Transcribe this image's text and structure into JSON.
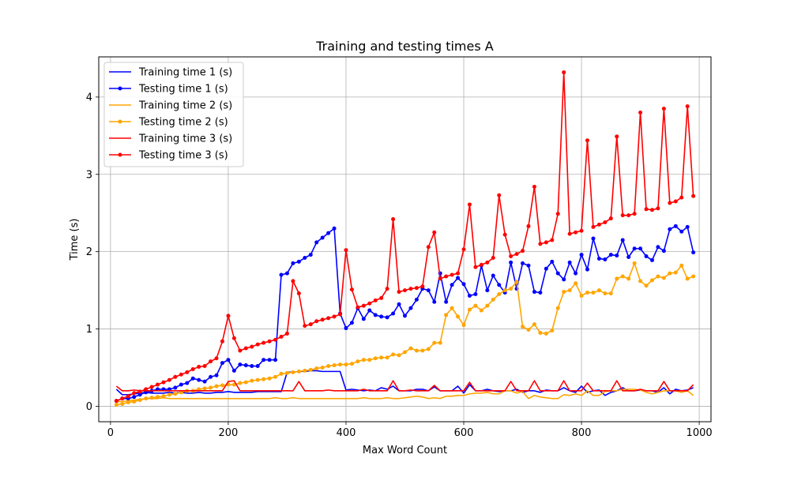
{
  "chart_data": {
    "type": "line",
    "title": "Training and testing times A",
    "xlabel": "Max Word Count",
    "ylabel": "Time (s)",
    "xlim": [
      -20,
      1020
    ],
    "ylim": [
      -0.2,
      4.52
    ],
    "xticks": [
      0,
      200,
      400,
      600,
      800,
      1000
    ],
    "yticks": [
      0,
      1,
      2,
      3,
      4
    ],
    "grid": true,
    "legend_position": "top-left",
    "x": [
      10,
      20,
      30,
      40,
      50,
      60,
      70,
      80,
      90,
      100,
      110,
      120,
      130,
      140,
      150,
      160,
      170,
      180,
      190,
      200,
      210,
      220,
      230,
      240,
      250,
      260,
      270,
      280,
      290,
      300,
      310,
      320,
      330,
      340,
      350,
      360,
      370,
      380,
      390,
      400,
      410,
      420,
      430,
      440,
      450,
      460,
      470,
      480,
      490,
      500,
      510,
      520,
      530,
      540,
      550,
      560,
      570,
      580,
      590,
      600,
      610,
      620,
      630,
      640,
      650,
      660,
      670,
      680,
      690,
      700,
      710,
      720,
      730,
      740,
      750,
      760,
      770,
      780,
      790,
      800,
      810,
      820,
      830,
      840,
      850,
      860,
      870,
      880,
      890,
      900,
      910,
      920,
      930,
      940,
      950,
      960,
      970,
      980,
      990
    ],
    "series": [
      {
        "name": "Training time 1 (s)",
        "color": "#0000ff",
        "markers": false,
        "values": [
          0.22,
          0.15,
          0.15,
          0.16,
          0.17,
          0.18,
          0.17,
          0.17,
          0.17,
          0.18,
          0.17,
          0.18,
          0.17,
          0.17,
          0.18,
          0.17,
          0.17,
          0.18,
          0.18,
          0.19,
          0.18,
          0.18,
          0.18,
          0.18,
          0.19,
          0.19,
          0.19,
          0.19,
          0.19,
          0.44,
          0.44,
          0.45,
          0.45,
          0.46,
          0.46,
          0.45,
          0.45,
          0.45,
          0.45,
          0.21,
          0.22,
          0.21,
          0.2,
          0.21,
          0.2,
          0.24,
          0.22,
          0.26,
          0.2,
          0.2,
          0.2,
          0.22,
          0.22,
          0.2,
          0.25,
          0.2,
          0.2,
          0.2,
          0.26,
          0.17,
          0.28,
          0.2,
          0.2,
          0.22,
          0.2,
          0.19,
          0.2,
          0.2,
          0.22,
          0.18,
          0.2,
          0.2,
          0.18,
          0.21,
          0.2,
          0.2,
          0.24,
          0.2,
          0.18,
          0.26,
          0.18,
          0.2,
          0.21,
          0.14,
          0.18,
          0.2,
          0.24,
          0.2,
          0.2,
          0.21,
          0.2,
          0.2,
          0.18,
          0.24,
          0.16,
          0.22,
          0.2,
          0.21,
          0.24
        ]
      },
      {
        "name": "Testing time 1 (s)",
        "color": "#0000ff",
        "markers": true,
        "values": [
          0.07,
          0.1,
          0.1,
          0.12,
          0.15,
          0.18,
          0.2,
          0.22,
          0.22,
          0.22,
          0.24,
          0.28,
          0.3,
          0.36,
          0.34,
          0.32,
          0.38,
          0.4,
          0.56,
          0.6,
          0.46,
          0.54,
          0.53,
          0.52,
          0.52,
          0.6,
          0.6,
          0.6,
          1.7,
          1.72,
          1.85,
          1.87,
          1.92,
          1.96,
          2.12,
          2.18,
          2.24,
          2.3,
          1.2,
          1.01,
          1.08,
          1.27,
          1.13,
          1.24,
          1.18,
          1.16,
          1.15,
          1.2,
          1.32,
          1.17,
          1.27,
          1.38,
          1.52,
          1.5,
          1.35,
          1.72,
          1.35,
          1.57,
          1.66,
          1.58,
          1.43,
          1.45,
          1.82,
          1.5,
          1.69,
          1.57,
          1.47,
          1.86,
          1.52,
          1.85,
          1.82,
          1.48,
          1.47,
          1.78,
          1.87,
          1.72,
          1.64,
          1.86,
          1.72,
          1.96,
          1.77,
          2.17,
          1.91,
          1.9,
          1.96,
          1.95,
          2.15,
          1.93,
          2.04,
          2.04,
          1.94,
          1.89,
          2.06,
          2.01,
          2.29,
          2.33,
          2.26,
          2.32,
          1.99
        ]
      },
      {
        "name": "Training time 2 (s)",
        "color": "#ffa500",
        "markers": false,
        "values": [
          0.06,
          0.06,
          0.07,
          0.08,
          0.09,
          0.1,
          0.1,
          0.1,
          0.11,
          0.1,
          0.1,
          0.1,
          0.1,
          0.1,
          0.1,
          0.1,
          0.1,
          0.1,
          0.1,
          0.1,
          0.1,
          0.1,
          0.1,
          0.1,
          0.1,
          0.1,
          0.1,
          0.11,
          0.1,
          0.1,
          0.11,
          0.1,
          0.1,
          0.1,
          0.1,
          0.1,
          0.1,
          0.1,
          0.1,
          0.1,
          0.1,
          0.1,
          0.11,
          0.1,
          0.1,
          0.1,
          0.11,
          0.1,
          0.1,
          0.11,
          0.12,
          0.13,
          0.12,
          0.1,
          0.11,
          0.1,
          0.13,
          0.13,
          0.14,
          0.14,
          0.16,
          0.17,
          0.17,
          0.18,
          0.16,
          0.16,
          0.2,
          0.2,
          0.17,
          0.19,
          0.1,
          0.14,
          0.12,
          0.11,
          0.1,
          0.1,
          0.15,
          0.14,
          0.16,
          0.14,
          0.2,
          0.14,
          0.14,
          0.19,
          0.2,
          0.2,
          0.22,
          0.22,
          0.22,
          0.21,
          0.18,
          0.16,
          0.18,
          0.2,
          0.2,
          0.2,
          0.18,
          0.2,
          0.14
        ]
      },
      {
        "name": "Testing time 2 (s)",
        "color": "#ffa500",
        "markers": true,
        "values": [
          0.02,
          0.03,
          0.05,
          0.06,
          0.08,
          0.1,
          0.11,
          0.12,
          0.13,
          0.15,
          0.16,
          0.18,
          0.2,
          0.2,
          0.22,
          0.23,
          0.24,
          0.26,
          0.27,
          0.28,
          0.28,
          0.3,
          0.31,
          0.33,
          0.34,
          0.35,
          0.36,
          0.38,
          0.42,
          0.43,
          0.44,
          0.45,
          0.46,
          0.47,
          0.49,
          0.5,
          0.52,
          0.53,
          0.54,
          0.54,
          0.55,
          0.58,
          0.6,
          0.6,
          0.62,
          0.63,
          0.63,
          0.67,
          0.66,
          0.7,
          0.75,
          0.72,
          0.72,
          0.74,
          0.82,
          0.82,
          1.18,
          1.27,
          1.16,
          1.05,
          1.25,
          1.3,
          1.24,
          1.3,
          1.38,
          1.45,
          1.5,
          1.52,
          1.61,
          1.03,
          0.99,
          1.06,
          0.95,
          0.94,
          0.98,
          1.27,
          1.48,
          1.5,
          1.59,
          1.43,
          1.47,
          1.47,
          1.5,
          1.46,
          1.46,
          1.65,
          1.68,
          1.65,
          1.85,
          1.62,
          1.56,
          1.63,
          1.68,
          1.66,
          1.72,
          1.73,
          1.82,
          1.65,
          1.68
        ]
      },
      {
        "name": "Training time 3 (s)",
        "color": "#ff0000",
        "markers": false,
        "values": [
          0.26,
          0.2,
          0.2,
          0.21,
          0.2,
          0.2,
          0.2,
          0.2,
          0.2,
          0.2,
          0.2,
          0.2,
          0.2,
          0.2,
          0.2,
          0.2,
          0.2,
          0.2,
          0.2,
          0.32,
          0.33,
          0.2,
          0.2,
          0.2,
          0.2,
          0.2,
          0.2,
          0.2,
          0.2,
          0.2,
          0.2,
          0.32,
          0.2,
          0.2,
          0.2,
          0.2,
          0.21,
          0.2,
          0.2,
          0.2,
          0.2,
          0.2,
          0.22,
          0.2,
          0.2,
          0.2,
          0.2,
          0.33,
          0.2,
          0.2,
          0.21,
          0.2,
          0.2,
          0.2,
          0.27,
          0.2,
          0.2,
          0.2,
          0.2,
          0.2,
          0.31,
          0.2,
          0.2,
          0.2,
          0.2,
          0.2,
          0.2,
          0.32,
          0.2,
          0.2,
          0.2,
          0.33,
          0.2,
          0.2,
          0.2,
          0.2,
          0.33,
          0.2,
          0.2,
          0.2,
          0.3,
          0.2,
          0.2,
          0.2,
          0.2,
          0.33,
          0.2,
          0.2,
          0.2,
          0.22,
          0.2,
          0.2,
          0.2,
          0.32,
          0.2,
          0.2,
          0.2,
          0.2,
          0.28
        ]
      },
      {
        "name": "Testing time 3 (s)",
        "color": "#ff0000",
        "markers": true,
        "values": [
          0.07,
          0.1,
          0.13,
          0.17,
          0.19,
          0.22,
          0.25,
          0.28,
          0.31,
          0.34,
          0.38,
          0.41,
          0.44,
          0.48,
          0.51,
          0.52,
          0.58,
          0.62,
          0.84,
          1.17,
          0.88,
          0.72,
          0.75,
          0.77,
          0.8,
          0.82,
          0.84,
          0.86,
          0.9,
          0.94,
          1.62,
          1.46,
          1.04,
          1.06,
          1.1,
          1.12,
          1.14,
          1.16,
          1.19,
          2.02,
          1.51,
          1.28,
          1.3,
          1.33,
          1.37,
          1.4,
          1.52,
          2.42,
          1.48,
          1.5,
          1.52,
          1.53,
          1.55,
          2.06,
          2.25,
          1.65,
          1.68,
          1.7,
          1.72,
          2.03,
          2.61,
          1.8,
          1.83,
          1.86,
          1.92,
          2.73,
          2.22,
          1.94,
          1.97,
          2.01,
          2.33,
          2.84,
          2.1,
          2.12,
          2.15,
          2.49,
          4.32,
          2.23,
          2.25,
          2.27,
          3.44,
          2.32,
          2.35,
          2.38,
          2.43,
          3.49,
          2.47,
          2.47,
          2.49,
          3.8,
          2.55,
          2.54,
          2.56,
          3.85,
          2.63,
          2.65,
          2.7,
          3.88,
          2.72
        ]
      }
    ]
  }
}
